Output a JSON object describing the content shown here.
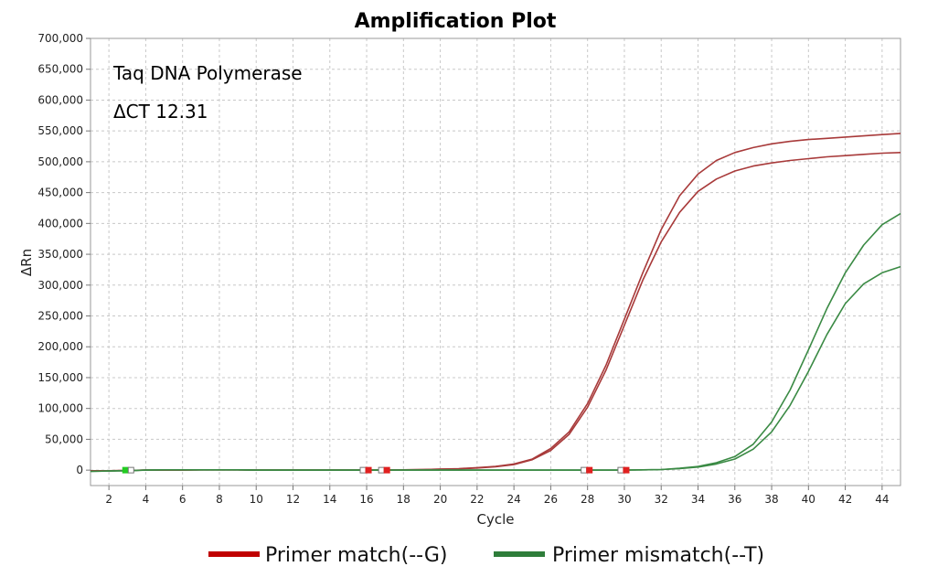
{
  "chart_data": {
    "type": "line",
    "title": "Amplification Plot",
    "xlabel": "Cycle",
    "ylabel": "ΔRn",
    "xlim": [
      1,
      45
    ],
    "ylim": [
      -25000,
      700000
    ],
    "x_ticks": [
      2,
      4,
      6,
      8,
      10,
      12,
      14,
      16,
      18,
      20,
      22,
      24,
      26,
      28,
      30,
      32,
      34,
      36,
      38,
      40,
      42,
      44
    ],
    "y_ticks": [
      0,
      50000,
      100000,
      150000,
      200000,
      250000,
      300000,
      350000,
      400000,
      450000,
      500000,
      550000,
      600000,
      650000,
      700000
    ],
    "y_tick_labels": [
      "0",
      "50,000",
      "100,000",
      "150,000",
      "200,000",
      "250,000",
      "300,000",
      "350,000",
      "400,000",
      "450,000",
      "500,000",
      "550,000",
      "600,000",
      "650,000",
      "700,000"
    ],
    "grid": true,
    "annotations": [
      "Taq DNA Polymerase",
      "ΔCT 12.31"
    ],
    "legend": {
      "placement": "bottom",
      "entries": [
        {
          "label": "Primer match(--G)",
          "color": "#c00000"
        },
        {
          "label": "Primer mismatch(--T)",
          "color": "#2e7d3a"
        }
      ]
    },
    "series": [
      {
        "group": "Primer match(--G)",
        "color": "#a83a3a",
        "x": [
          1,
          2,
          3,
          4,
          5,
          6,
          7,
          8,
          9,
          10,
          11,
          12,
          13,
          14,
          15,
          16,
          17,
          18,
          19,
          20,
          21,
          22,
          23,
          24,
          25,
          26,
          27,
          28,
          29,
          30,
          31,
          32,
          33,
          34,
          35,
          36,
          37,
          38,
          39,
          40,
          41,
          42,
          43,
          44,
          45
        ],
        "values": [
          -1000,
          -1000,
          -500,
          0,
          0,
          0,
          500,
          500,
          500,
          0,
          0,
          0,
          0,
          0,
          0,
          0,
          0,
          500,
          1000,
          1500,
          2500,
          4000,
          6000,
          10000,
          18000,
          35000,
          62000,
          108000,
          170000,
          245000,
          320000,
          390000,
          445000,
          480000,
          502000,
          515000,
          523000,
          529000,
          533000,
          536000,
          538000,
          540000,
          542000,
          544000,
          546000
        ]
      },
      {
        "group": "Primer match(--G)",
        "color": "#a83a3a",
        "x": [
          1,
          2,
          3,
          4,
          5,
          6,
          7,
          8,
          9,
          10,
          11,
          12,
          13,
          14,
          15,
          16,
          17,
          18,
          19,
          20,
          21,
          22,
          23,
          24,
          25,
          26,
          27,
          28,
          29,
          30,
          31,
          32,
          33,
          34,
          35,
          36,
          37,
          38,
          39,
          40,
          41,
          42,
          43,
          44,
          45
        ],
        "values": [
          -1000,
          -1000,
          -500,
          0,
          0,
          0,
          500,
          500,
          500,
          0,
          0,
          0,
          0,
          0,
          0,
          0,
          0,
          500,
          1000,
          1500,
          2000,
          3500,
          5500,
          9000,
          17000,
          32000,
          58000,
          102000,
          162000,
          235000,
          308000,
          370000,
          418000,
          452000,
          472000,
          485000,
          493000,
          498000,
          502000,
          505000,
          508000,
          510000,
          512000,
          514000,
          515000
        ]
      },
      {
        "group": "Primer mismatch(--T)",
        "color": "#3a8a44",
        "x": [
          1,
          2,
          3,
          4,
          5,
          6,
          7,
          8,
          9,
          10,
          11,
          12,
          13,
          14,
          15,
          16,
          17,
          18,
          19,
          20,
          21,
          22,
          23,
          24,
          25,
          26,
          27,
          28,
          29,
          30,
          31,
          32,
          33,
          34,
          35,
          36,
          37,
          38,
          39,
          40,
          41,
          42,
          43,
          44,
          45
        ],
        "values": [
          -2000,
          -1500,
          -1000,
          0,
          500,
          500,
          500,
          500,
          500,
          0,
          0,
          0,
          0,
          0,
          0,
          0,
          0,
          0,
          0,
          0,
          0,
          0,
          0,
          0,
          0,
          0,
          0,
          0,
          0,
          0,
          500,
          1000,
          3000,
          6000,
          12000,
          22000,
          42000,
          78000,
          130000,
          195000,
          262000,
          320000,
          365000,
          398000,
          416000
        ]
      },
      {
        "group": "Primer mismatch(--T)",
        "color": "#3a8a44",
        "x": [
          1,
          2,
          3,
          4,
          5,
          6,
          7,
          8,
          9,
          10,
          11,
          12,
          13,
          14,
          15,
          16,
          17,
          18,
          19,
          20,
          21,
          22,
          23,
          24,
          25,
          26,
          27,
          28,
          29,
          30,
          31,
          32,
          33,
          34,
          35,
          36,
          37,
          38,
          39,
          40,
          41,
          42,
          43,
          44,
          45
        ],
        "values": [
          -2000,
          -1500,
          -1000,
          0,
          500,
          500,
          500,
          500,
          500,
          0,
          0,
          0,
          0,
          0,
          0,
          0,
          0,
          0,
          0,
          0,
          0,
          0,
          0,
          0,
          0,
          0,
          0,
          0,
          0,
          0,
          500,
          1000,
          2500,
          5000,
          10000,
          18000,
          34000,
          62000,
          105000,
          160000,
          220000,
          270000,
          302000,
          320000,
          330000
        ]
      }
    ],
    "baseline_markers": [
      {
        "x": 2.9,
        "color": "#22cc22"
      },
      {
        "x": 3.2,
        "color": "#ffffff"
      },
      {
        "x": 15.8,
        "color": "#ffffff"
      },
      {
        "x": 16.1,
        "color": "#e02020"
      },
      {
        "x": 16.8,
        "color": "#ffffff"
      },
      {
        "x": 17.1,
        "color": "#e02020"
      },
      {
        "x": 27.8,
        "color": "#ffffff"
      },
      {
        "x": 28.1,
        "color": "#e02020"
      },
      {
        "x": 29.8,
        "color": "#ffffff"
      },
      {
        "x": 30.1,
        "color": "#e02020"
      }
    ]
  }
}
